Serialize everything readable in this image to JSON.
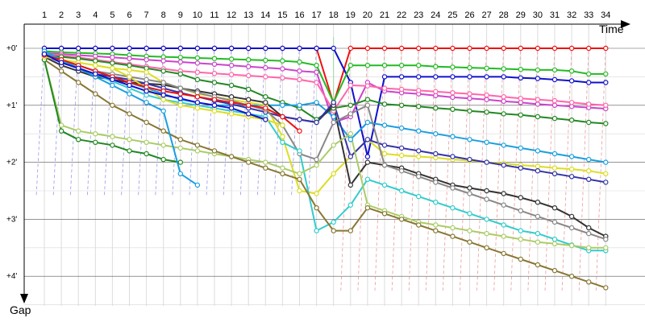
{
  "chart_data": {
    "type": "line",
    "x_axis_title": "Time",
    "y_axis_title": "Gap",
    "laps": [
      1,
      2,
      3,
      4,
      5,
      6,
      7,
      8,
      9,
      10,
      11,
      12,
      13,
      14,
      15,
      16,
      17,
      18,
      19,
      20,
      21,
      22,
      23,
      24,
      25,
      26,
      27,
      28,
      29,
      30,
      31,
      32,
      33,
      34
    ],
    "gap_ticks": [
      {
        "value": 0,
        "label": "+0'"
      },
      {
        "value": 1,
        "label": "+1'"
      },
      {
        "value": 2,
        "label": "+2'"
      },
      {
        "value": 3,
        "label": "+3'"
      },
      {
        "value": 4,
        "label": "+4'"
      }
    ],
    "ylim": [
      -0.5,
      4.6
    ],
    "grid": true,
    "series": [
      {
        "color": "#ee1111",
        "values": [
          0.0,
          0.0,
          0.0,
          0.0,
          0.0,
          0.0,
          0.0,
          0.0,
          0.0,
          0.0,
          0.0,
          0.0,
          0.0,
          0.0,
          0.0,
          0.0,
          0.0,
          0.97,
          0.0,
          0.0,
          0.0,
          0.0,
          0.0,
          0.0,
          0.0,
          0.0,
          0.0,
          0.0,
          0.0,
          0.0,
          0.0,
          0.0,
          0.0,
          0.0
        ]
      },
      {
        "color": "#1111cc",
        "values": [
          0.0,
          0.0,
          0.0,
          0.0,
          0.0,
          0.0,
          0.0,
          0.0,
          0.0,
          0.0,
          0.0,
          0.0,
          0.0,
          0.0,
          0.0,
          0.0,
          0.0,
          0.0,
          0.6,
          1.9,
          0.5,
          0.5,
          0.5,
          0.5,
          0.5,
          0.5,
          0.5,
          0.5,
          0.52,
          0.53,
          0.55,
          0.57,
          0.6,
          0.6
        ]
      },
      {
        "color": "#22bb22",
        "values": [
          0.05,
          0.07,
          0.08,
          0.09,
          0.1,
          0.12,
          0.14,
          0.15,
          0.16,
          0.17,
          0.18,
          0.19,
          0.2,
          0.21,
          0.22,
          0.24,
          0.3,
          0.95,
          0.3,
          0.3,
          0.3,
          0.3,
          0.3,
          0.32,
          0.33,
          0.34,
          0.35,
          0.36,
          0.37,
          0.38,
          0.38,
          0.4,
          0.45,
          0.45
        ]
      },
      {
        "color": "#cc44cc",
        "values": [
          0.08,
          0.1,
          0.12,
          0.14,
          0.16,
          0.18,
          0.2,
          0.22,
          0.24,
          0.26,
          0.28,
          0.3,
          0.32,
          0.34,
          0.36,
          0.4,
          0.42,
          1.3,
          1.2,
          0.6,
          0.75,
          0.78,
          0.8,
          0.83,
          0.86,
          0.88,
          0.9,
          0.93,
          0.95,
          0.98,
          1.0,
          1.02,
          1.04,
          1.06
        ]
      },
      {
        "color": "#ff66aa",
        "values": [
          0.1,
          0.13,
          0.16,
          0.2,
          0.24,
          0.28,
          0.32,
          0.36,
          0.4,
          0.42,
          0.44,
          0.46,
          0.48,
          0.5,
          0.52,
          0.55,
          0.6,
          1.1,
          0.65,
          0.66,
          0.7,
          0.72,
          0.74,
          0.76,
          0.78,
          0.8,
          0.82,
          0.85,
          0.88,
          0.9,
          0.92,
          0.95,
          0.98,
          1.0
        ]
      },
      {
        "color": "#228822",
        "values": [
          0.12,
          0.15,
          0.18,
          0.22,
          0.26,
          0.3,
          0.35,
          0.4,
          0.45,
          0.55,
          0.6,
          0.65,
          0.72,
          0.85,
          0.95,
          1.05,
          1.25,
          1.05,
          1.0,
          0.9,
          0.98,
          1.0,
          1.02,
          1.05,
          1.07,
          1.1,
          1.12,
          1.15,
          1.17,
          1.2,
          1.23,
          1.26,
          1.3,
          1.32
        ]
      },
      {
        "color": "#1a9fe0",
        "values": [
          0.05,
          0.2,
          0.3,
          0.4,
          0.5,
          0.6,
          0.7,
          0.8,
          0.9,
          0.95,
          1.0,
          1.0,
          1.0,
          1.0,
          1.0,
          1.0,
          0.95,
          1.2,
          1.6,
          1.3,
          1.35,
          1.4,
          1.45,
          1.5,
          1.55,
          1.6,
          1.65,
          1.7,
          1.75,
          1.8,
          1.85,
          1.9,
          1.95,
          2.0
        ]
      },
      {
        "color": "#dddd22",
        "values": [
          0.1,
          0.2,
          0.25,
          0.3,
          0.35,
          0.38,
          0.42,
          0.6,
          0.7,
          0.8,
          0.85,
          0.9,
          0.95,
          1.0,
          1.55,
          2.5,
          2.55,
          2.2,
          1.9,
          1.6,
          1.85,
          1.88,
          1.9,
          1.92,
          1.95,
          1.97,
          2.0,
          2.02,
          2.05,
          2.07,
          2.1,
          2.12,
          2.15,
          2.2
        ]
      },
      {
        "color": "#333333",
        "values": [
          0.15,
          0.3,
          0.4,
          0.5,
          0.55,
          0.6,
          0.62,
          0.64,
          0.7,
          0.75,
          0.8,
          0.85,
          0.9,
          0.95,
          1.2,
          1.25,
          1.3,
          1.0,
          2.4,
          2.0,
          2.05,
          2.1,
          2.2,
          2.3,
          2.4,
          2.45,
          2.5,
          2.55,
          2.62,
          2.7,
          2.8,
          2.95,
          3.15,
          3.3
        ]
      },
      {
        "color": "#3333aa",
        "values": [
          0.12,
          0.25,
          0.35,
          0.45,
          0.5,
          0.55,
          0.62,
          0.7,
          0.78,
          0.85,
          0.92,
          0.98,
          1.05,
          1.12,
          1.2,
          1.25,
          1.3,
          0.95,
          1.9,
          1.6,
          1.7,
          1.75,
          1.8,
          1.85,
          1.9,
          1.95,
          2.0,
          2.05,
          2.1,
          2.15,
          2.2,
          2.25,
          2.3,
          2.35
        ]
      },
      {
        "color": "#888888",
        "values": [
          0.1,
          0.2,
          0.3,
          0.4,
          0.45,
          0.5,
          0.55,
          0.6,
          0.7,
          0.78,
          0.85,
          0.92,
          1.0,
          1.08,
          1.35,
          1.85,
          1.95,
          1.3,
          1.15,
          1.0,
          2.05,
          2.15,
          2.25,
          2.35,
          2.45,
          2.55,
          2.65,
          2.75,
          2.85,
          2.95,
          3.05,
          3.15,
          3.25,
          3.35
        ]
      },
      {
        "color": "#33cccc",
        "values": [
          0.1,
          0.22,
          0.34,
          0.46,
          0.58,
          0.7,
          0.82,
          0.9,
          0.95,
          1.0,
          1.05,
          1.1,
          1.15,
          1.2,
          1.65,
          1.8,
          3.2,
          3.05,
          2.75,
          2.3,
          2.4,
          2.5,
          2.6,
          2.7,
          2.8,
          2.9,
          3.0,
          3.1,
          3.2,
          3.25,
          3.35,
          3.45,
          3.55,
          3.55
        ]
      },
      {
        "color": "#aacc66",
        "values": [
          0.2,
          1.35,
          1.45,
          1.5,
          1.55,
          1.6,
          1.65,
          1.7,
          1.75,
          1.8,
          1.85,
          1.9,
          1.95,
          2.0,
          2.1,
          2.2,
          2.05,
          1.7,
          1.5,
          2.75,
          2.85,
          2.95,
          3.05,
          3.1,
          3.15,
          3.2,
          3.25,
          3.3,
          3.35,
          3.4,
          3.43,
          3.46,
          3.5,
          3.5
        ]
      },
      {
        "color": "#887733",
        "values": [
          0.2,
          0.4,
          0.6,
          0.8,
          1.0,
          1.15,
          1.3,
          1.45,
          1.6,
          1.7,
          1.8,
          1.9,
          2.0,
          2.1,
          2.2,
          2.3,
          2.8,
          3.2,
          3.2,
          2.8,
          2.9,
          3.0,
          3.1,
          3.2,
          3.3,
          3.4,
          3.5,
          3.6,
          3.7,
          3.8,
          3.9,
          4.0,
          4.1,
          4.2
        ]
      },
      {
        "color": "#228822",
        "values": [
          0.2,
          1.45,
          1.6,
          1.65,
          1.7,
          1.8,
          1.85,
          1.95,
          2.0
        ]
      },
      {
        "color": "#1a9fe0",
        "values": [
          0.1,
          0.2,
          0.35,
          0.5,
          0.65,
          0.8,
          0.95,
          1.1,
          2.2,
          2.4
        ]
      },
      {
        "color": "#dddd22",
        "values": [
          0.15,
          0.2,
          0.25,
          0.3,
          0.35,
          0.5,
          0.7,
          0.9,
          1.0,
          1.05,
          1.1,
          1.15,
          1.2,
          1.25,
          1.35
        ]
      },
      {
        "color": "#ee1111",
        "values": [
          0.12,
          0.2,
          0.3,
          0.4,
          0.5,
          0.6,
          0.68,
          0.75,
          0.8,
          0.85,
          0.9,
          0.95,
          1.0,
          1.05,
          1.2,
          1.45
        ]
      },
      {
        "color": "#1111cc",
        "values": [
          0.1,
          0.25,
          0.35,
          0.45,
          0.55,
          0.65,
          0.75,
          0.82,
          0.88,
          0.95,
          1.0,
          1.05,
          1.15,
          1.25
        ]
      }
    ]
  }
}
